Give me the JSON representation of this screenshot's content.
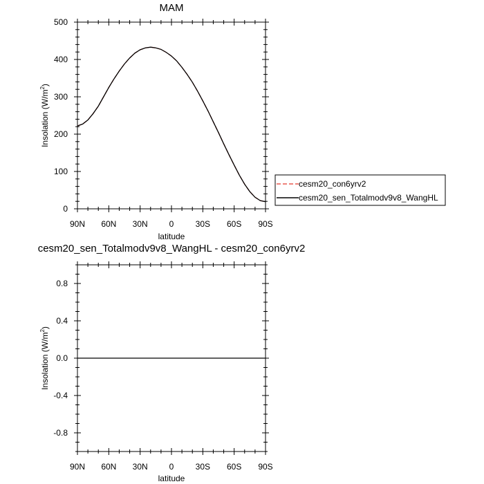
{
  "chart_data": [
    {
      "type": "line",
      "title": "MAM",
      "xlabel": "latitude",
      "ylabel_main": "Insolation (W/m",
      "ylabel_sup": "2",
      "ylabel_end": ")",
      "x_ticks": [
        90,
        60,
        30,
        0,
        -30,
        -60,
        -90
      ],
      "x_tick_labels": [
        "90N",
        "60N",
        "30N",
        "0",
        "30S",
        "60S",
        "90S"
      ],
      "xlim": [
        90,
        -90
      ],
      "ylim": [
        0,
        500
      ],
      "y_ticks": [
        0,
        100,
        200,
        300,
        400,
        500
      ],
      "y_tick_labels": [
        "0",
        "100",
        "200",
        "300",
        "400",
        "500"
      ],
      "legend_position": "right",
      "x": [
        90,
        85,
        80,
        75,
        70,
        65,
        60,
        55,
        50,
        45,
        40,
        35,
        30,
        25,
        20,
        15,
        10,
        5,
        0,
        -5,
        -10,
        -15,
        -20,
        -25,
        -30,
        -35,
        -40,
        -45,
        -50,
        -55,
        -60,
        -65,
        -70,
        -75,
        -80,
        -85,
        -90
      ],
      "series": [
        {
          "name": "cesm20_con6yrv2",
          "color": "#e8584f",
          "dash": "dashed",
          "values": [
            222,
            227,
            238,
            255,
            275,
            300,
            325,
            348,
            369,
            388,
            404,
            417,
            426,
            431,
            433,
            431,
            427,
            419,
            409,
            396,
            379,
            360,
            339,
            315,
            289,
            262,
            233,
            204,
            174,
            145,
            117,
            90,
            66,
            46,
            31,
            22,
            19
          ]
        },
        {
          "name": "cesm20_sen_Totalmodv9v8_WangHL",
          "color": "#000000",
          "dash": "solid",
          "values": [
            222,
            227,
            238,
            255,
            275,
            300,
            325,
            348,
            369,
            388,
            404,
            417,
            426,
            431,
            433,
            431,
            427,
            419,
            409,
            396,
            379,
            360,
            339,
            315,
            289,
            262,
            233,
            204,
            174,
            145,
            117,
            90,
            66,
            46,
            31,
            22,
            19
          ]
        }
      ]
    },
    {
      "type": "line",
      "title": "cesm20_sen_Totalmodv9v8_WangHL - cesm20_con6yrv2",
      "xlabel": "latitude",
      "ylabel_main": "Insolation (W/m",
      "ylabel_sup": "2",
      "ylabel_end": ")",
      "x_ticks": [
        90,
        60,
        30,
        0,
        -30,
        -60,
        -90
      ],
      "x_tick_labels": [
        "90N",
        "60N",
        "30N",
        "0",
        "30S",
        "60S",
        "90S"
      ],
      "xlim": [
        90,
        -90
      ],
      "ylim": [
        -1,
        1
      ],
      "y_ticks": [
        0.8,
        0.4,
        0.0,
        -0.4,
        -0.8
      ],
      "y_tick_labels": [
        "0.8",
        "0.4",
        "0.0",
        "-0.4",
        "-0.8"
      ],
      "x": [
        90,
        -90
      ],
      "series": [
        {
          "color": "#000000",
          "values": [
            0,
            0
          ]
        }
      ]
    }
  ]
}
